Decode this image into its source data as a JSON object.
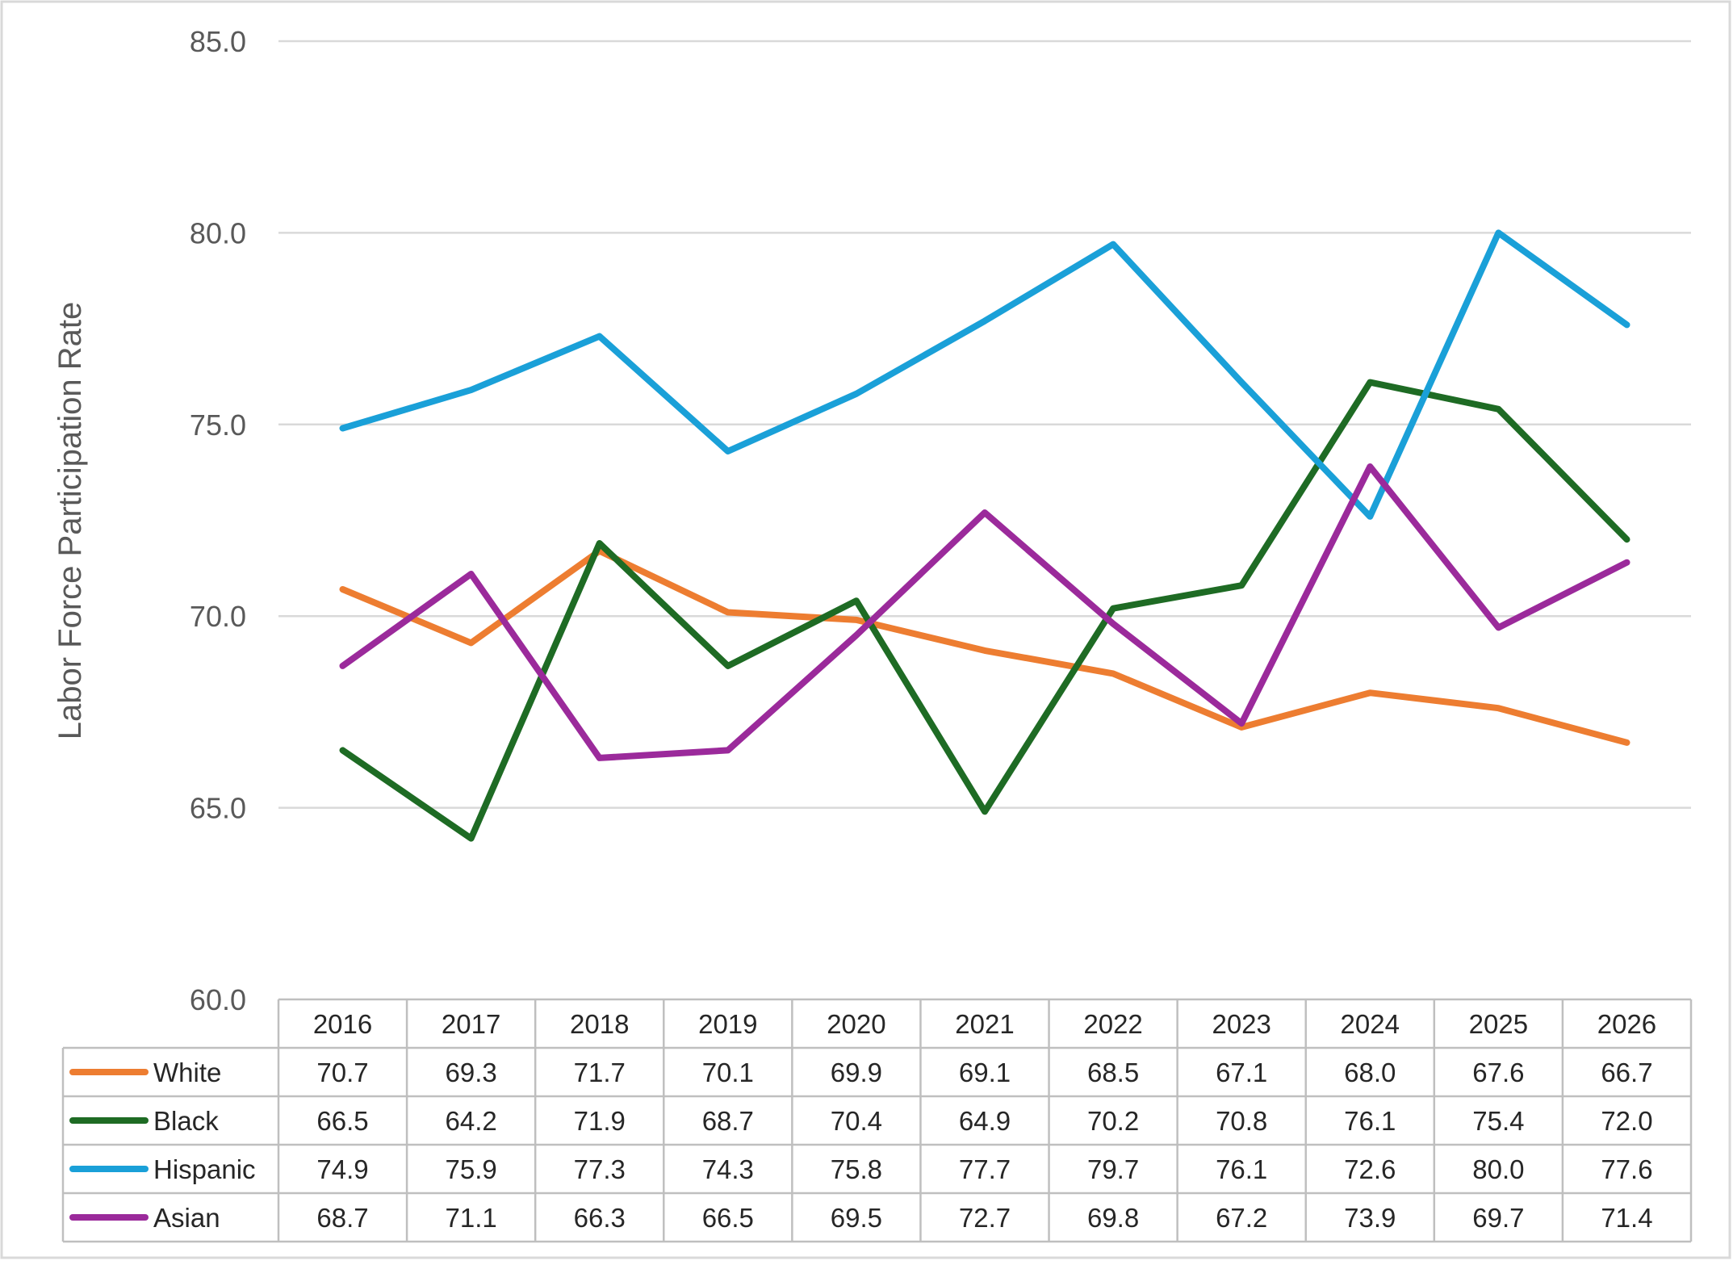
{
  "chart_data": {
    "type": "line",
    "title": "",
    "xlabel": "",
    "ylabel": "Labor Force Participation Rate",
    "ylim": [
      60,
      85
    ],
    "yticks": [
      "60.0",
      "65.0",
      "70.0",
      "75.0",
      "80.0",
      "85.0"
    ],
    "grid": true,
    "legend": "data table below chart",
    "categories": [
      "2016",
      "2017",
      "2018",
      "2019",
      "2020",
      "2021",
      "2022",
      "2023",
      "2024",
      "2025",
      "2026"
    ],
    "series": [
      {
        "name": "White",
        "color": "#ed7d31",
        "values": [
          70.7,
          69.3,
          71.7,
          70.1,
          69.9,
          69.1,
          68.5,
          67.1,
          68.0,
          67.6,
          66.7
        ],
        "labels": [
          "70.7",
          "69.3",
          "71.7",
          "70.1",
          "69.9",
          "69.1",
          "68.5",
          "67.1",
          "68.0",
          "67.6",
          "66.7"
        ]
      },
      {
        "name": "Black",
        "color": "#1e6b24",
        "values": [
          66.5,
          64.2,
          71.9,
          68.7,
          70.4,
          64.9,
          70.2,
          70.8,
          76.1,
          75.4,
          72.0
        ],
        "labels": [
          "66.5",
          "64.2",
          "71.9",
          "68.7",
          "70.4",
          "64.9",
          "70.2",
          "70.8",
          "76.1",
          "75.4",
          "72.0"
        ]
      },
      {
        "name": "Hispanic",
        "color": "#1aa0d8",
        "values": [
          74.9,
          75.9,
          77.3,
          74.3,
          75.8,
          77.7,
          79.7,
          76.1,
          72.6,
          80.0,
          77.6
        ],
        "labels": [
          "74.9",
          "75.9",
          "77.3",
          "74.3",
          "75.8",
          "77.7",
          "79.7",
          "76.1",
          "72.6",
          "80.0",
          "77.6"
        ]
      },
      {
        "name": "Asian",
        "color": "#9b2a9b",
        "values": [
          68.7,
          71.1,
          66.3,
          66.5,
          69.5,
          72.7,
          69.8,
          67.2,
          73.9,
          69.7,
          71.4
        ],
        "labels": [
          "68.7",
          "71.1",
          "66.3",
          "66.5",
          "69.5",
          "72.7",
          "69.8",
          "67.2",
          "73.9",
          "69.7",
          "71.4"
        ]
      }
    ]
  }
}
